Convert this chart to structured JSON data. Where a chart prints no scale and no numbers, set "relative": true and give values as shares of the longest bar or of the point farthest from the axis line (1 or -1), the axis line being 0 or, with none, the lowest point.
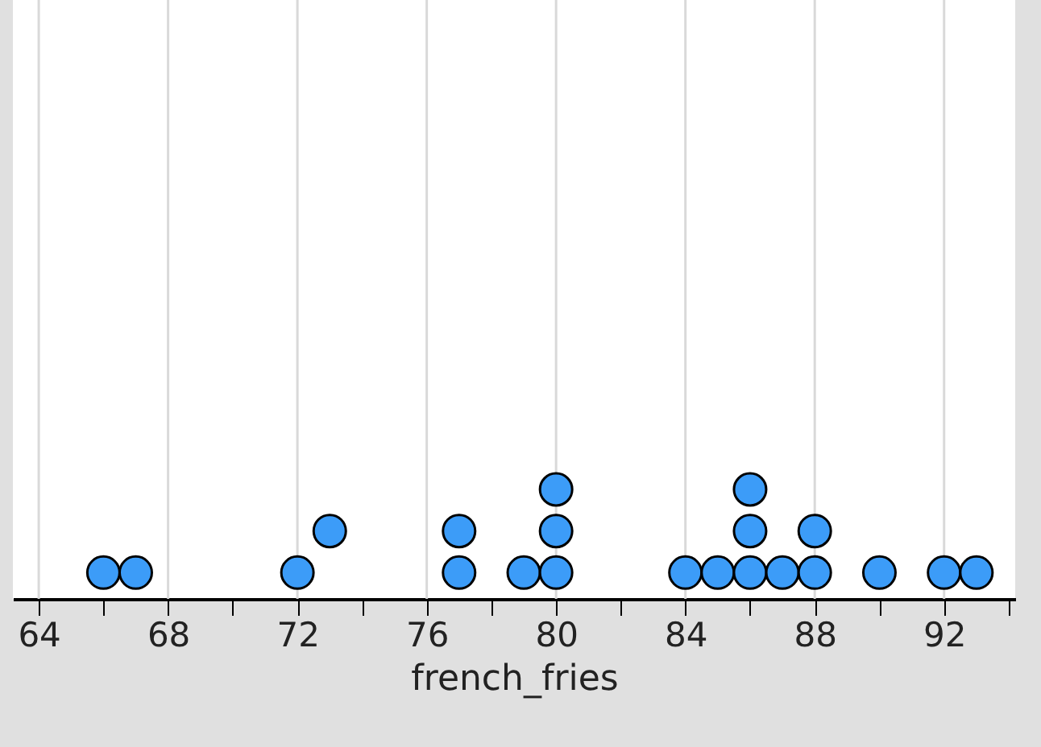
{
  "chart_data": {
    "type": "scatter",
    "xlabel": "french_fries",
    "marker": "circle",
    "grid": "x",
    "relative": true,
    "xlim": [
      63.2,
      94.2
    ],
    "xticks": [
      64,
      {
        "value": 66,
        "label": null
      },
      68,
      {
        "value": 70,
        "label": null
      },
      72,
      {
        "value": 74,
        "label": null
      },
      76,
      {
        "value": 78,
        "label": null
      },
      80,
      {
        "value": 82,
        "label": null
      },
      84,
      {
        "value": 86,
        "label": null
      },
      88,
      {
        "value": 90,
        "label": null
      },
      92,
      {
        "value": 94,
        "label": null
      }
    ],
    "series": [
      {
        "color": "#3c9cf8",
        "x": [
          66,
          67,
          72,
          73,
          77,
          77,
          79,
          80,
          80,
          80,
          84,
          85,
          86,
          86,
          86,
          87,
          88,
          88,
          90,
          92,
          93
        ],
        "values": [
          0.24,
          0.24,
          0.24,
          0.62,
          0.24,
          0.62,
          0.24,
          0.24,
          0.62,
          1,
          0.24,
          0.24,
          0.24,
          0.62,
          1,
          0.24,
          0.24,
          0.62,
          0.24,
          0.24,
          0.24
        ]
      }
    ]
  }
}
